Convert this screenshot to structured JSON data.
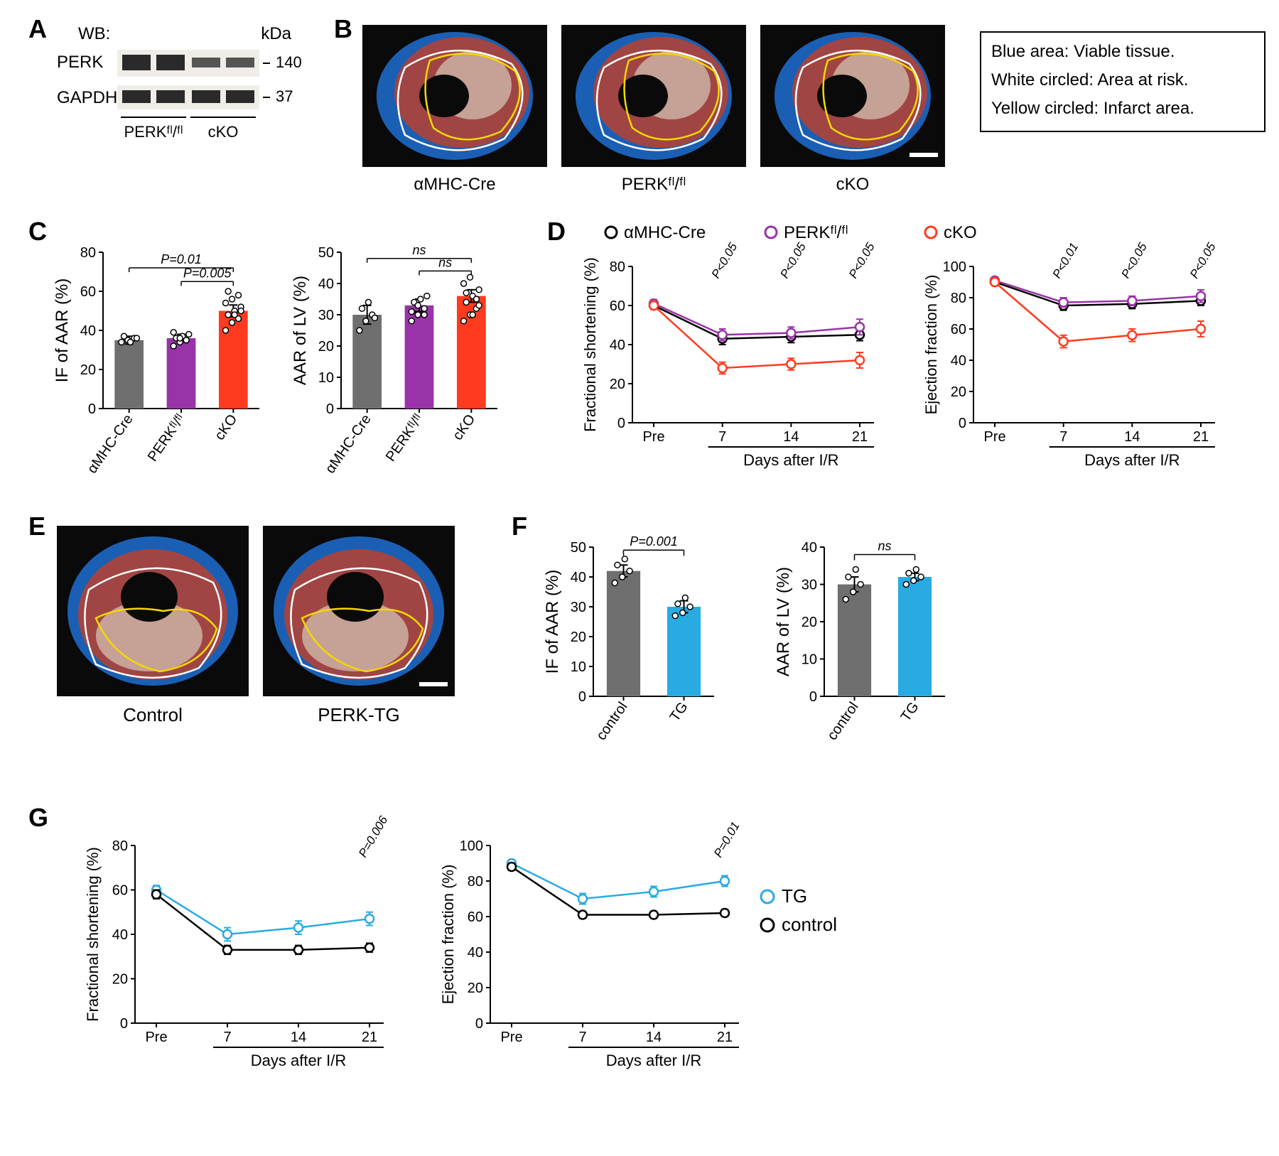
{
  "panelA": {
    "label": "A",
    "wb_label": "WB:",
    "kda_label": "kDa",
    "rows": [
      {
        "name": "PERK",
        "kda": "140"
      },
      {
        "name": "GAPDH",
        "kda": "37"
      }
    ],
    "groups": [
      "PERKᶠˡ/ᶠˡ",
      "cKO"
    ],
    "band_bg": "#f0ede8",
    "band_color": "#2a2a2a"
  },
  "panelB": {
    "label": "B",
    "images": [
      "αMHC-Cre",
      "PERKᶠˡ/ᶠˡ",
      "cKO"
    ],
    "legend_title": "",
    "legend_lines": [
      "Blue area: Viable tissue.",
      "White circled: Area at risk.",
      "Yellow circled: Infarct area."
    ],
    "colors": {
      "blue": "#1a5fb4",
      "red": "#b8412f",
      "white": "#d6c9b8",
      "outline_w": "#ffffff",
      "outline_y": "#f5d800"
    }
  },
  "panelC": {
    "label": "C",
    "charts": [
      {
        "ylabel": "IF of AAR (%)",
        "ylim": [
          0,
          80
        ],
        "ytick_step": 20,
        "categories": [
          "αMHC-Cre",
          "PERKᶠˡ/ᶠˡ",
          "cKO"
        ],
        "values": [
          35,
          36,
          50
        ],
        "errors": [
          2,
          2,
          3
        ],
        "colors": [
          "#6f6f6f",
          "#9933a8",
          "#ff3b1f"
        ],
        "scatter": [
          [
            34,
            35,
            36,
            37,
            34,
            36
          ],
          [
            32,
            34,
            35,
            36,
            37,
            38,
            39,
            36,
            35
          ],
          [
            40,
            44,
            46,
            48,
            50,
            52,
            54,
            56,
            58,
            60,
            48,
            50
          ]
        ],
        "pvalues": [
          {
            "from": 0,
            "to": 2,
            "label": "P=0.01",
            "y": 72
          },
          {
            "from": 1,
            "to": 2,
            "label": "P=0.005",
            "y": 65
          }
        ]
      },
      {
        "ylabel": "AAR of LV (%)",
        "ylim": [
          0,
          50
        ],
        "ytick_step": 10,
        "categories": [
          "αMHC-Cre",
          "PERKᶠˡ/ᶠˡ",
          "cKO"
        ],
        "values": [
          30,
          33,
          36
        ],
        "errors": [
          3,
          2,
          2
        ],
        "colors": [
          "#6f6f6f",
          "#9933a8",
          "#ff3b1f"
        ],
        "scatter": [
          [
            25,
            28,
            30,
            32,
            34,
            29
          ],
          [
            28,
            30,
            32,
            34,
            35,
            36,
            31,
            33,
            30
          ],
          [
            28,
            30,
            32,
            34,
            36,
            38,
            40,
            42,
            35,
            37,
            30,
            33
          ]
        ],
        "pvalues": [
          {
            "from": 0,
            "to": 2,
            "label": "ns",
            "y": 48
          },
          {
            "from": 1,
            "to": 2,
            "label": "ns",
            "y": 44
          }
        ]
      }
    ]
  },
  "panelD": {
    "label": "D",
    "legend": [
      {
        "label": "αMHC-Cre",
        "color": "#000000"
      },
      {
        "label": "PERKᶠˡ/ᶠˡ",
        "color": "#9933a8"
      },
      {
        "label": "cKO",
        "color": "#ff3b1f"
      }
    ],
    "xlabel": "Days after I/R",
    "xcats": [
      "Pre",
      "7",
      "14",
      "21"
    ],
    "charts": [
      {
        "ylabel": "Fractional shortening (%)",
        "ylim": [
          0,
          80
        ],
        "ytick_step": 20,
        "series": [
          {
            "color": "#000000",
            "vals": [
              60,
              43,
              44,
              45
            ],
            "err": [
              2,
              3,
              3,
              3
            ]
          },
          {
            "color": "#9933a8",
            "vals": [
              61,
              45,
              46,
              49
            ],
            "err": [
              2,
              3,
              3,
              4
            ]
          },
          {
            "color": "#ff3b1f",
            "vals": [
              60,
              28,
              30,
              32
            ],
            "err": [
              2,
              3,
              3,
              4
            ]
          }
        ],
        "plabels": [
          {
            "x": 1,
            "label": "P<0.05"
          },
          {
            "x": 2,
            "label": "P<0.05"
          },
          {
            "x": 3,
            "label": "P<0.05"
          }
        ]
      },
      {
        "ylabel": "Ejection fraction (%)",
        "ylim": [
          0,
          100
        ],
        "ytick_step": 20,
        "series": [
          {
            "color": "#000000",
            "vals": [
              90,
              75,
              76,
              78
            ],
            "err": [
              2,
              3,
              3,
              3
            ]
          },
          {
            "color": "#9933a8",
            "vals": [
              91,
              77,
              78,
              81
            ],
            "err": [
              2,
              3,
              3,
              4
            ]
          },
          {
            "color": "#ff3b1f",
            "vals": [
              90,
              52,
              56,
              60
            ],
            "err": [
              2,
              4,
              4,
              5
            ]
          }
        ],
        "plabels": [
          {
            "x": 1,
            "label": "P<0.01"
          },
          {
            "x": 2,
            "label": "P<0.05"
          },
          {
            "x": 3,
            "label": "P<0.05"
          }
        ]
      }
    ]
  },
  "panelE": {
    "label": "E",
    "images": [
      "Control",
      "PERK-TG"
    ]
  },
  "panelF": {
    "label": "F",
    "charts": [
      {
        "ylabel": "IF of AAR (%)",
        "ylim": [
          0,
          50
        ],
        "ytick_step": 10,
        "categories": [
          "control",
          "TG"
        ],
        "values": [
          42,
          30
        ],
        "errors": [
          2,
          2
        ],
        "colors": [
          "#6f6f6f",
          "#29abe2"
        ],
        "scatter": [
          [
            38,
            40,
            42,
            44,
            46
          ],
          [
            27,
            28,
            30,
            31,
            33
          ]
        ],
        "pvalue": {
          "label": "P=0.001",
          "y": 49
        }
      },
      {
        "ylabel": "AAR of LV (%)",
        "ylim": [
          0,
          40
        ],
        "ytick_step": 10,
        "categories": [
          "control",
          "TG"
        ],
        "values": [
          30,
          32
        ],
        "errors": [
          2,
          1
        ],
        "colors": [
          "#6f6f6f",
          "#29abe2"
        ],
        "scatter": [
          [
            26,
            28,
            30,
            32,
            34
          ],
          [
            30,
            31,
            32,
            33,
            34
          ]
        ],
        "pvalue": {
          "label": "ns",
          "y": 38
        }
      }
    ]
  },
  "panelG": {
    "label": "G",
    "legend": [
      {
        "label": "TG",
        "color": "#29abe2"
      },
      {
        "label": "control",
        "color": "#000000"
      }
    ],
    "xlabel": "Days after I/R",
    "xcats": [
      "Pre",
      "7",
      "14",
      "21"
    ],
    "charts": [
      {
        "ylabel": "Fractional shortening (%)",
        "ylim": [
          0,
          80
        ],
        "ytick_step": 20,
        "series": [
          {
            "color": "#29abe2",
            "vals": [
              60,
              40,
              43,
              47
            ],
            "err": [
              2,
              3,
              3,
              3
            ]
          },
          {
            "color": "#000000",
            "vals": [
              58,
              33,
              33,
              34
            ],
            "err": [
              2,
              2,
              2,
              2
            ]
          }
        ],
        "plabels": [
          {
            "x": 3,
            "label": "P=0.006"
          }
        ]
      },
      {
        "ylabel": "Ejection fraction (%)",
        "ylim": [
          0,
          100
        ],
        "ytick_step": 20,
        "series": [
          {
            "color": "#29abe2",
            "vals": [
              90,
              70,
              74,
              80
            ],
            "err": [
              2,
              3,
              3,
              3
            ]
          },
          {
            "color": "#000000",
            "vals": [
              88,
              61,
              61,
              62
            ],
            "err": [
              2,
              2,
              2,
              2
            ]
          }
        ],
        "plabels": [
          {
            "x": 3,
            "label": "P=0.01"
          }
        ]
      }
    ]
  }
}
